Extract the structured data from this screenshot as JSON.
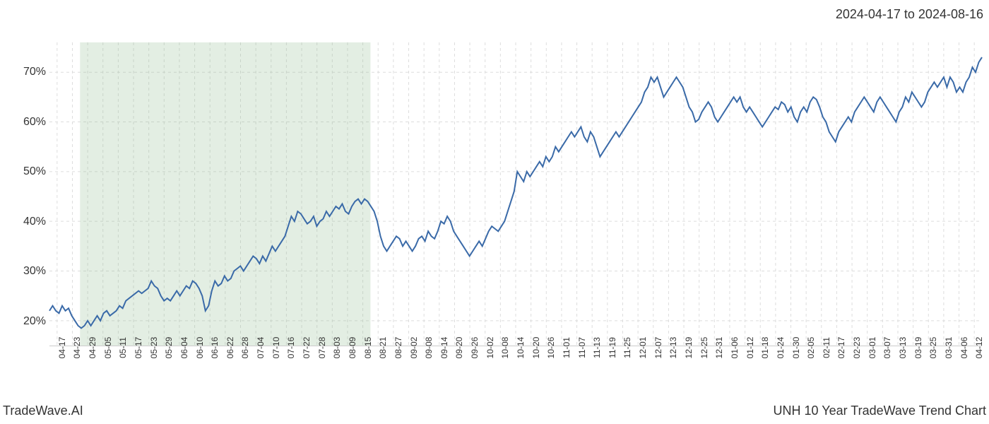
{
  "header": {
    "date_range": "2024-04-17 to 2024-08-16"
  },
  "footer": {
    "left": "TradeWave.AI",
    "right": "UNH 10 Year TradeWave Trend Chart"
  },
  "chart": {
    "type": "line",
    "background_color": "#ffffff",
    "grid_color": "#dddddd",
    "line_color": "#3a6aa8",
    "line_width": 2,
    "highlight_fill": "rgba(144,186,144,0.25)",
    "ylim": [
      15,
      76
    ],
    "y_ticks": [
      20,
      30,
      40,
      50,
      60,
      70
    ],
    "y_tick_suffix": "%",
    "x_labels": [
      "04-17",
      "04-23",
      "04-29",
      "05-05",
      "05-11",
      "05-17",
      "05-23",
      "05-29",
      "06-04",
      "06-10",
      "06-16",
      "06-22",
      "06-28",
      "07-04",
      "07-10",
      "07-16",
      "07-22",
      "07-28",
      "08-03",
      "08-09",
      "08-15",
      "08-21",
      "08-27",
      "09-02",
      "09-08",
      "09-14",
      "09-20",
      "09-26",
      "10-02",
      "10-08",
      "10-14",
      "10-20",
      "10-26",
      "11-01",
      "11-07",
      "11-13",
      "11-19",
      "11-25",
      "12-01",
      "12-07",
      "12-13",
      "12-19",
      "12-25",
      "12-31",
      "01-06",
      "01-12",
      "01-18",
      "01-24",
      "01-30",
      "02-05",
      "02-11",
      "02-17",
      "02-23",
      "03-01",
      "03-07",
      "03-13",
      "03-19",
      "03-25",
      "03-31",
      "04-06",
      "04-12"
    ],
    "highlight_range": {
      "start_index": 2,
      "end_index": 20
    },
    "series": {
      "name": "trend",
      "values": [
        22,
        23,
        22,
        21.5,
        23,
        22,
        22.5,
        21,
        20,
        19,
        18.5,
        19,
        20,
        19,
        20,
        21,
        20,
        21.5,
        22,
        21,
        21.5,
        22,
        23,
        22.5,
        24,
        24.5,
        25,
        25.5,
        26,
        25.5,
        26,
        26.5,
        28,
        27,
        26.5,
        25,
        24,
        24.5,
        24,
        25,
        26,
        25,
        26,
        27,
        26.5,
        28,
        27.5,
        26.5,
        25,
        22,
        23,
        26,
        28,
        27,
        27.5,
        29,
        28,
        28.5,
        30,
        30.5,
        31,
        30,
        31,
        32,
        33,
        32.5,
        31.5,
        33,
        32,
        33.5,
        35,
        34,
        35,
        36,
        37,
        39,
        41,
        40,
        42,
        41.5,
        40.5,
        39.5,
        40,
        41,
        39,
        40,
        40.5,
        42,
        41,
        42,
        43,
        42.5,
        43.5,
        42,
        41.5,
        43,
        44,
        44.5,
        43.5,
        44.5,
        44,
        43,
        42,
        40,
        37,
        35,
        34,
        35,
        36,
        37,
        36.5,
        35,
        36,
        35,
        34,
        35,
        36.5,
        37,
        36,
        38,
        37,
        36.5,
        38,
        40,
        39.5,
        41,
        40,
        38,
        37,
        36,
        35,
        34,
        33,
        34,
        35,
        36,
        35,
        36.5,
        38,
        39,
        38.5,
        38,
        39,
        40,
        42,
        44,
        46,
        50,
        49,
        48,
        50,
        49,
        50,
        51,
        52,
        51,
        53,
        52,
        53,
        55,
        54,
        55,
        56,
        57,
        58,
        57,
        58,
        59,
        57,
        56,
        58,
        57,
        55,
        53,
        54,
        55,
        56,
        57,
        58,
        57,
        58,
        59,
        60,
        61,
        62,
        63,
        64,
        66,
        67,
        69,
        68,
        69,
        67,
        65,
        66,
        67,
        68,
        69,
        68,
        67,
        65,
        63,
        62,
        60,
        60.5,
        62,
        63,
        64,
        63,
        61,
        60,
        61,
        62,
        63,
        64,
        65,
        64,
        65,
        63,
        62,
        63,
        62,
        61,
        60,
        59,
        60,
        61,
        62,
        63,
        62.5,
        64,
        63.5,
        62,
        63,
        61,
        60,
        62,
        63,
        62,
        64,
        65,
        64.5,
        63,
        61,
        60,
        58,
        57,
        56,
        58,
        59,
        60,
        61,
        60,
        62,
        63,
        64,
        65,
        64,
        63,
        62,
        64,
        65,
        64,
        63,
        62,
        61,
        60,
        62,
        63,
        65,
        64,
        66,
        65,
        64,
        63,
        64,
        66,
        67,
        68,
        67,
        68,
        69,
        67,
        69,
        68,
        66,
        67,
        66,
        68,
        69,
        71,
        70,
        72,
        73
      ]
    },
    "label_fontsize": 16,
    "tick_fontsize": 12
  }
}
